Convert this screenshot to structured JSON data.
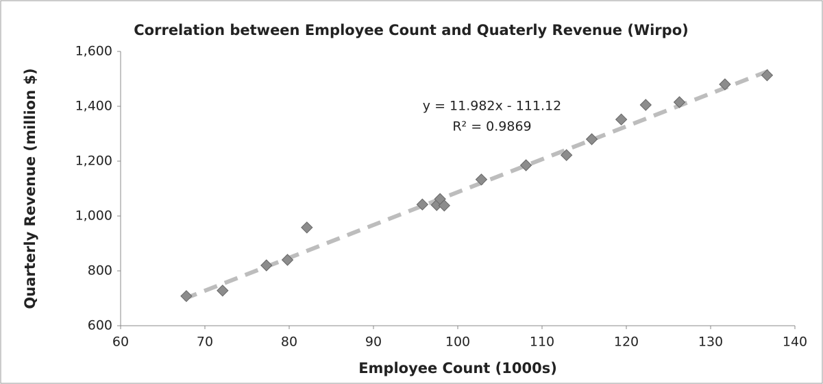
{
  "chart_data": {
    "type": "scatter",
    "title": "Correlation between Employee Count and Quaterly Revenue (Wirpo)",
    "x_label": "Employee Count (1000s)",
    "y_label": "Quarterly Revenue (million $)",
    "x": [
      67.8,
      72.1,
      77.3,
      79.8,
      82.1,
      95.8,
      97.5,
      97.9,
      98.4,
      102.8,
      108.1,
      112.9,
      115.9,
      119.4,
      122.3,
      126.3,
      131.7,
      136.7
    ],
    "series": [
      {
        "name": "Quarterly Revenue",
        "color": "#8c8c8c",
        "values": [
          708,
          728,
          820,
          840,
          958,
          1042,
          1040,
          1062,
          1038,
          1133,
          1185,
          1222,
          1280,
          1352,
          1405,
          1415,
          1480,
          1513
        ]
      }
    ],
    "trendline": {
      "slope": 11.982,
      "intercept": -111.12,
      "color": "#bdbdbd",
      "equation": "y = 11.982x - 111.12",
      "r_squared": "R² = 0.9869"
    },
    "xlim": [
      60,
      140
    ],
    "xticks": [
      60,
      70,
      80,
      90,
      100,
      110,
      120,
      130,
      140
    ],
    "ylim": [
      600,
      1600
    ],
    "yticks": [
      {
        "value": 600,
        "label": "600"
      },
      {
        "value": 800,
        "label": "800"
      },
      {
        "value": 1000,
        "label": "1,000"
      },
      {
        "value": 1200,
        "label": "1,200"
      },
      {
        "value": 1400,
        "label": "1,400"
      },
      {
        "value": 1600,
        "label": "1,600"
      }
    ],
    "grid": false
  }
}
